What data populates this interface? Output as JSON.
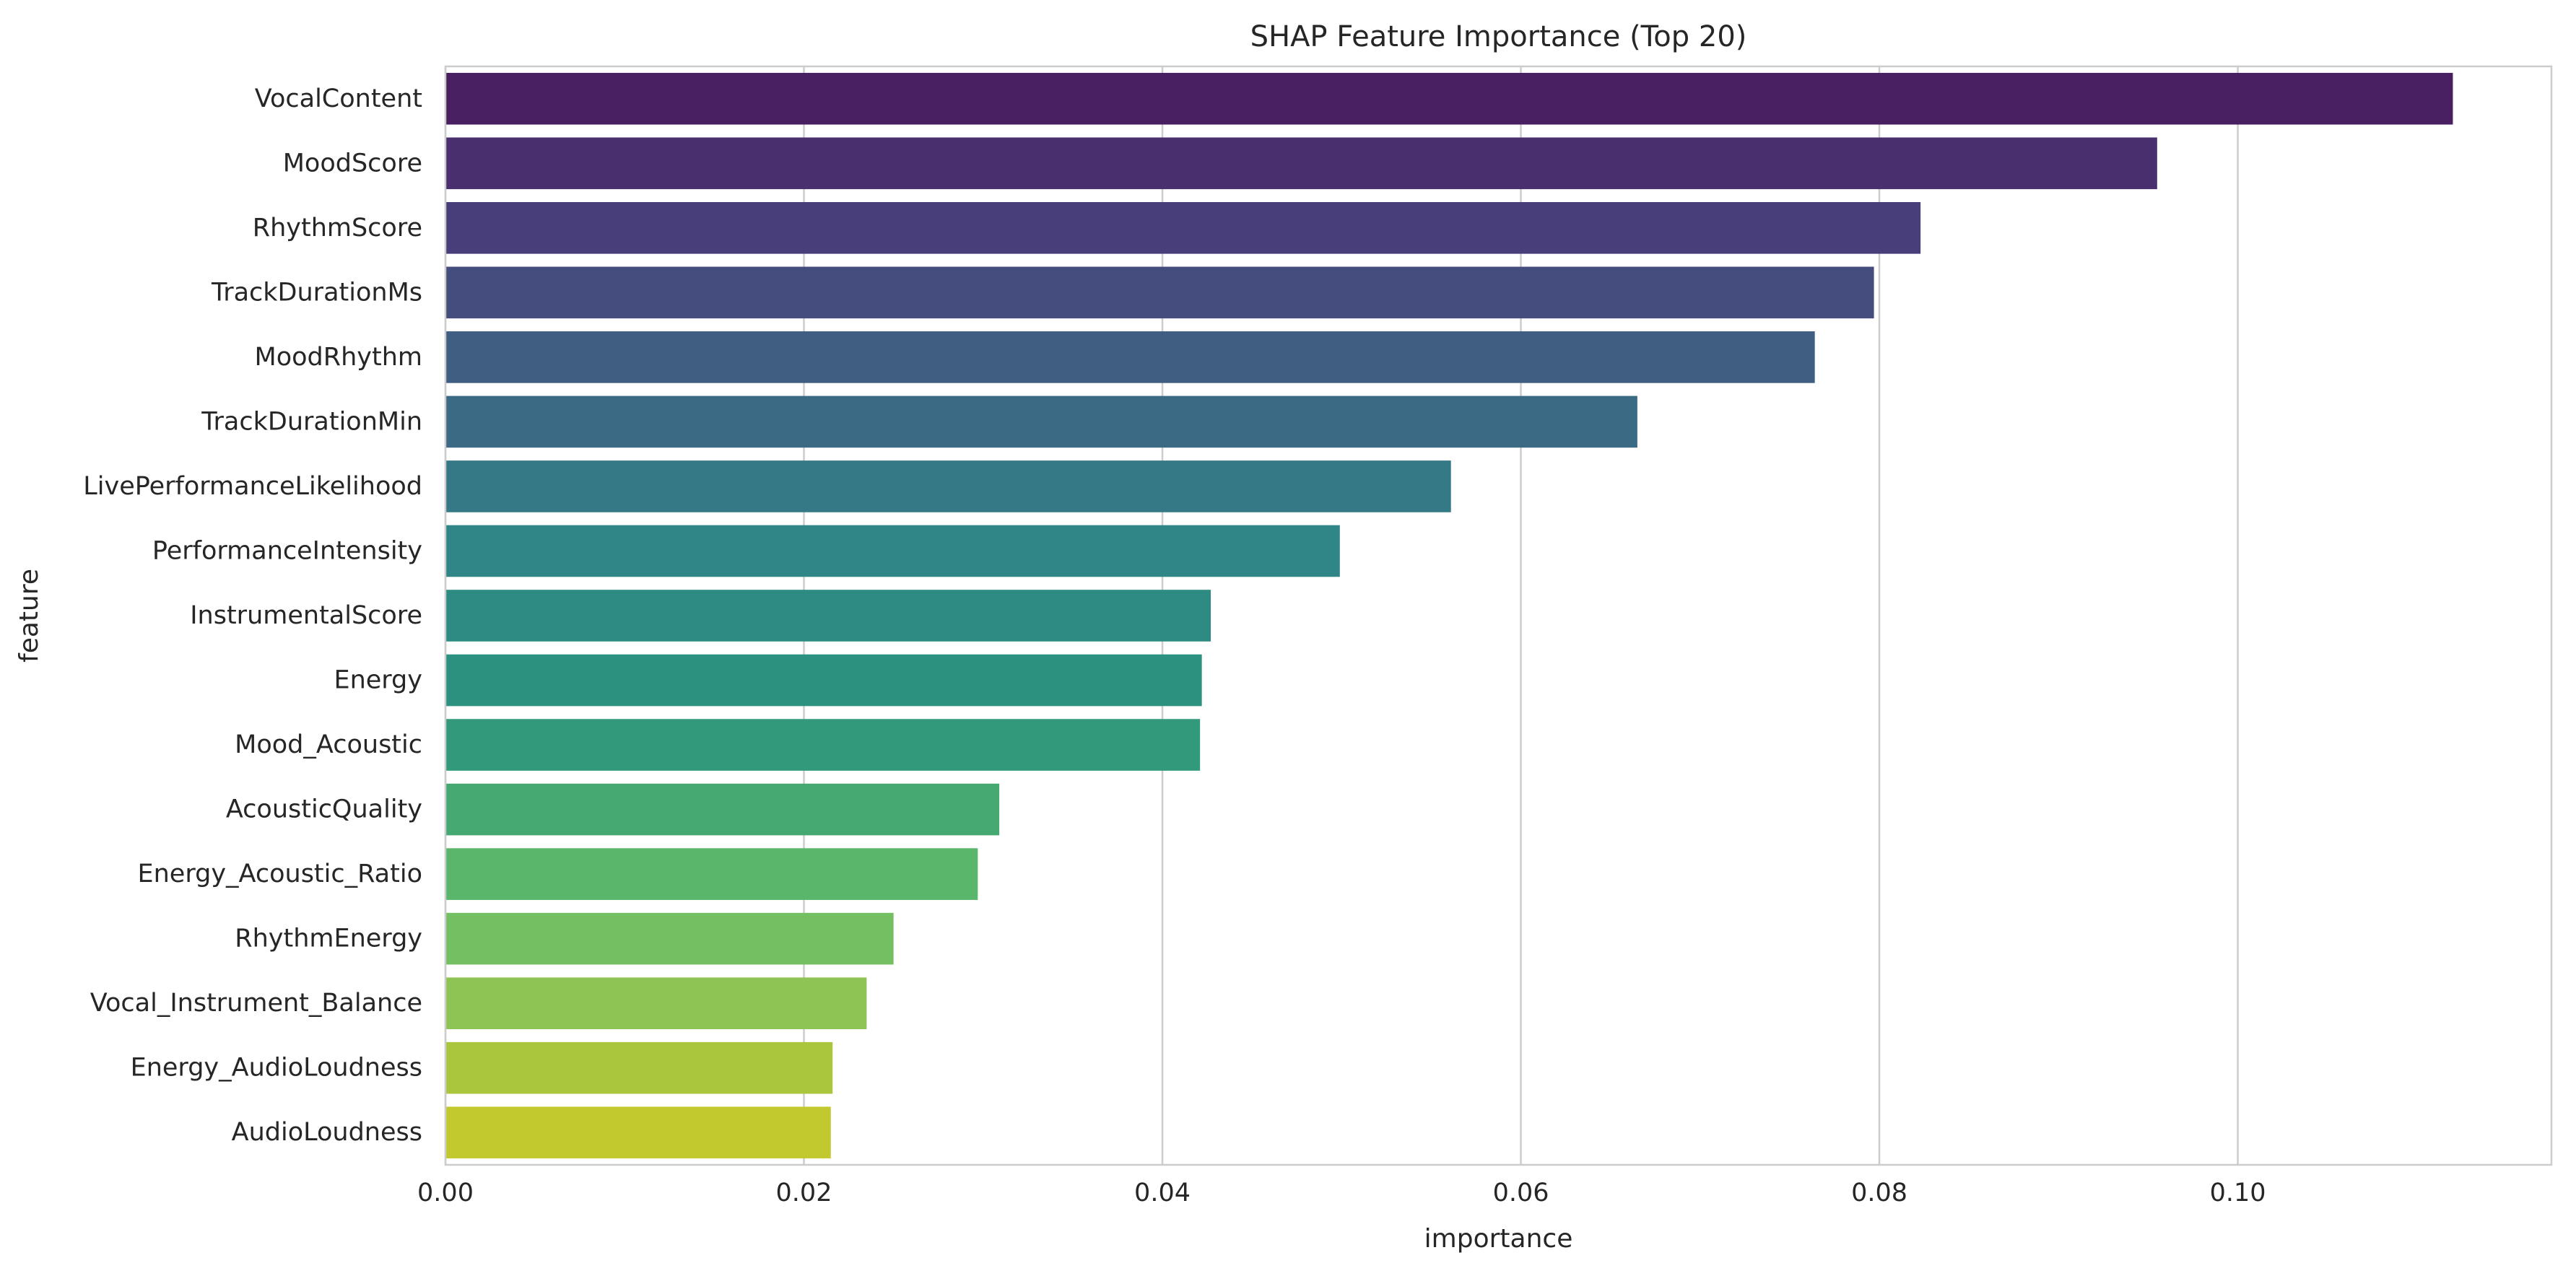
{
  "chart_data": {
    "type": "bar",
    "orientation": "horizontal",
    "title": "SHAP Feature Importance (Top 20)",
    "xlabel": "importance",
    "ylabel": "feature",
    "xlim": [
      0,
      0.1175
    ],
    "xticks": [
      0.0,
      0.02,
      0.04,
      0.06,
      0.08,
      0.1
    ],
    "xtick_labels": [
      "0.00",
      "0.02",
      "0.04",
      "0.06",
      "0.08",
      "0.10"
    ],
    "grid": true,
    "legend": "none",
    "categories": [
      "VocalContent",
      "MoodScore",
      "RhythmScore",
      "TrackDurationMs",
      "MoodRhythm",
      "TrackDurationMin",
      "LivePerformanceLikelihood",
      "PerformanceIntensity",
      "InstrumentalScore",
      "Energy",
      "Mood_Acoustic",
      "AcousticQuality",
      "Energy_Acoustic_Ratio",
      "RhythmEnergy",
      "Vocal_Instrument_Balance",
      "Energy_AudioLoudness",
      "AudioLoudness"
    ],
    "values": [
      0.112,
      0.0955,
      0.0823,
      0.0797,
      0.0764,
      0.0665,
      0.0561,
      0.0499,
      0.0427,
      0.0422,
      0.0421,
      0.0309,
      0.0297,
      0.025,
      0.0235,
      0.0216,
      0.0215
    ],
    "colors": [
      "#481f60",
      "#4a2f6f",
      "#483e79",
      "#454d7e",
      "#405d82",
      "#3b6b84",
      "#357886",
      "#308587",
      "#2d8b83",
      "#2c917f",
      "#32997a",
      "#46a871",
      "#5ab66a",
      "#74bf62",
      "#8ec453",
      "#a9c63d",
      "#c2c92f"
    ]
  }
}
